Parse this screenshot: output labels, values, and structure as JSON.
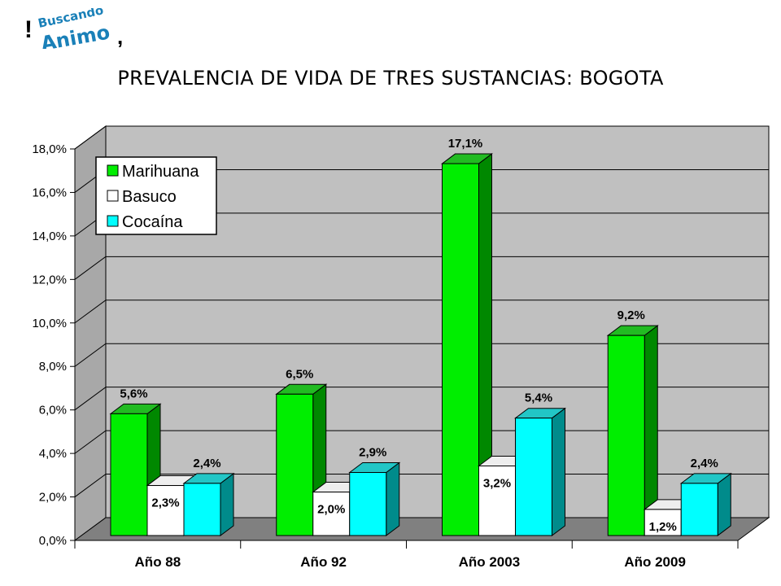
{
  "logo": {
    "text_top": "Buscando",
    "text_bottom": "Animo"
  },
  "chart_data": {
    "type": "bar",
    "title": "PREVALENCIA DE VIDA DE TRES SUSTANCIAS: BOGOTA",
    "categories": [
      "Año 88",
      "Año 92",
      "Año 2003",
      "Año 2009"
    ],
    "series": [
      {
        "name": "Marihuana",
        "values": [
          5.6,
          6.5,
          17.1,
          9.2
        ],
        "labels": [
          "5,6%",
          "6,5%",
          "17,1%",
          "9,2%"
        ],
        "color": "#00ee00",
        "side": "#008800",
        "top": "#22bb22"
      },
      {
        "name": "Basuco",
        "values": [
          2.3,
          2.0,
          3.2,
          1.2
        ],
        "labels": [
          "2,3%",
          "2,0%",
          "3,2%",
          "1,2%"
        ],
        "color": "#ffffff",
        "side": "#dddddd",
        "top": "#eeeeee"
      },
      {
        "name": "Cocaína",
        "values": [
          2.4,
          2.9,
          5.4,
          2.4
        ],
        "labels": [
          "2,4%",
          "2,9%",
          "5,4%",
          "2,4%"
        ],
        "color": "#00ffff",
        "side": "#008b8b",
        "top": "#22c6c6"
      }
    ],
    "yticks": [
      "0,0%",
      "2,0%",
      "4,0%",
      "6,0%",
      "8,0%",
      "10,0%",
      "12,0%",
      "14,0%",
      "16,0%",
      "18,0%"
    ],
    "ylim": [
      0,
      18
    ],
    "xlabel": "",
    "ylabel": "",
    "grid": true,
    "legend": "top-left",
    "colors": {
      "wall": "#c0c0c0",
      "floor": "#808080"
    }
  }
}
